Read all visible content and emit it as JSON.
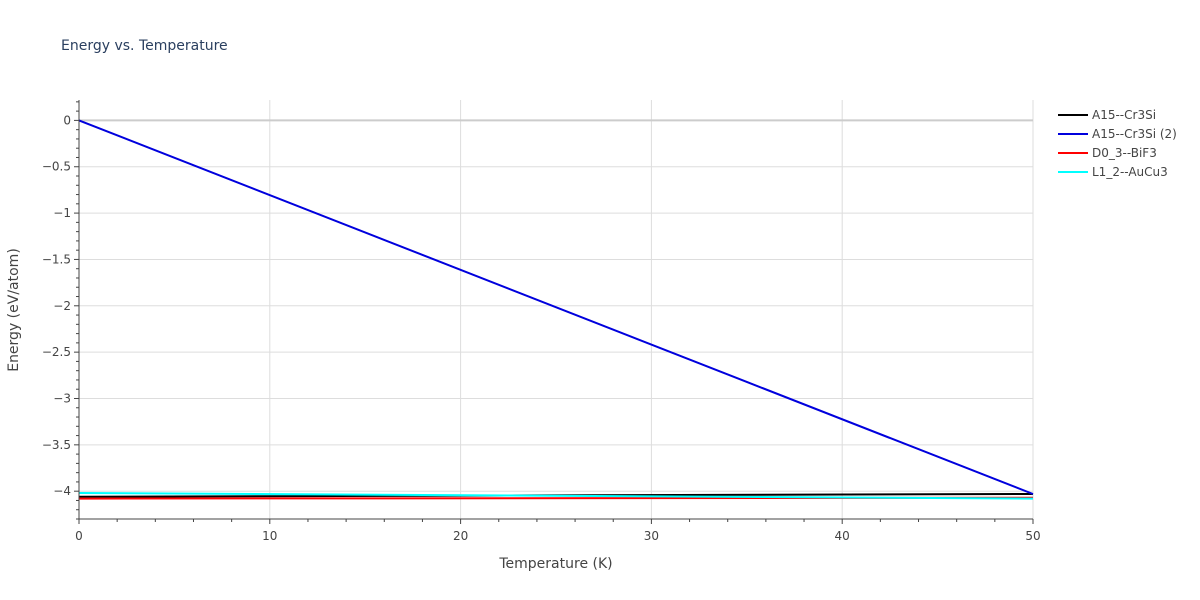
{
  "chart_data": {
    "type": "line",
    "title": "Energy vs. Temperature",
    "xlabel": "Temperature (K)",
    "ylabel": "Energy (eV/atom)",
    "xlim": [
      0,
      50
    ],
    "ylim": [
      -4.3,
      0.22
    ],
    "xticks": [
      0,
      10,
      20,
      30,
      40,
      50
    ],
    "xtick_labels": [
      "0",
      "10",
      "20",
      "30",
      "40",
      "50"
    ],
    "yticks": [
      0,
      -0.5,
      -1,
      -1.5,
      -2,
      -2.5,
      -3,
      -3.5,
      -4
    ],
    "ytick_labels": [
      "0",
      "−0.5",
      "−1",
      "−1.5",
      "−2",
      "−2.5",
      "−3",
      "−3.5",
      "−4"
    ],
    "grid": true,
    "legend_position": "top-right",
    "series": [
      {
        "name": "A15--Cr3Si",
        "color": "#000000",
        "x": [
          0,
          50
        ],
        "y": [
          -4.06,
          -4.03
        ]
      },
      {
        "name": "A15--Cr3Si (2)",
        "color": "#0000dd",
        "x": [
          0,
          50
        ],
        "y": [
          0,
          -4.03
        ]
      },
      {
        "name": "D0_3--BiF3",
        "color": "#ff0000",
        "x": [
          0,
          50
        ],
        "y": [
          -4.08,
          -4.07
        ]
      },
      {
        "name": "L1_2--AuCu3",
        "color": "#00ffff",
        "x": [
          0,
          50
        ],
        "y": [
          -4.02,
          -4.08
        ]
      }
    ]
  }
}
